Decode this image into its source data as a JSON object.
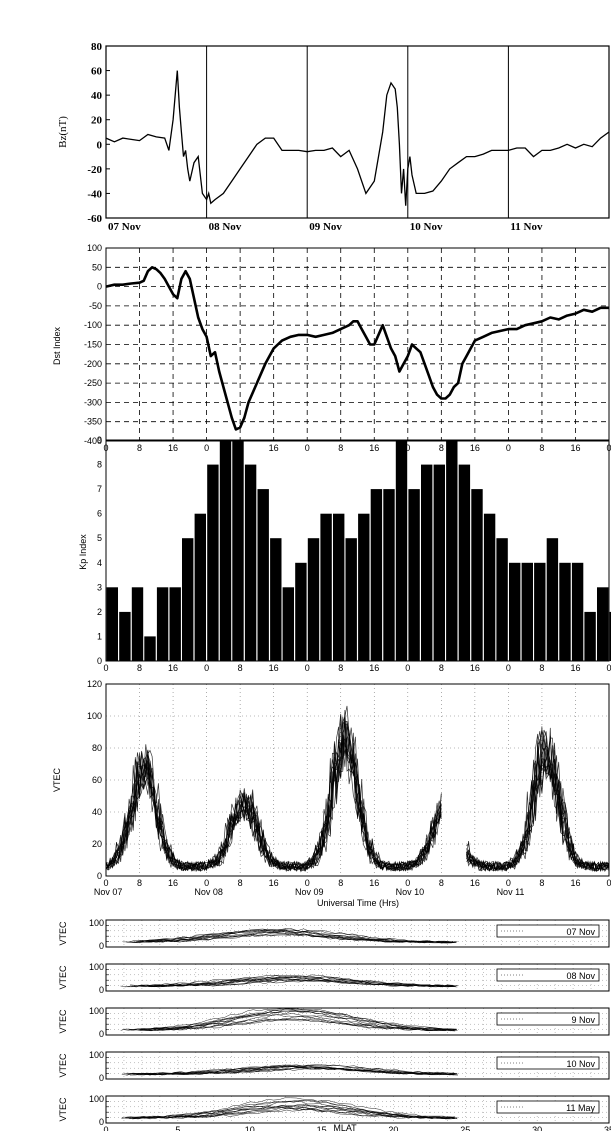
{
  "chart_data": [
    {
      "type": "line",
      "ylabel": "Bz(nT)",
      "ylim": [
        -60,
        80
      ],
      "yticks": [
        -60,
        -40,
        -20,
        0,
        20,
        40,
        60,
        80
      ],
      "xlim": [
        0,
        120
      ],
      "xtick_labels": [
        "07 Nov",
        "08 Nov",
        "09 Nov",
        "10 Nov",
        "11 Nov"
      ],
      "vlines_hours": [
        24,
        48,
        72,
        96
      ],
      "grid": false,
      "series": [
        {
          "x": [
            0,
            2,
            4,
            6,
            8,
            10,
            12,
            14,
            15,
            16,
            16.5,
            17,
            17.5,
            18,
            18.5,
            19,
            19.5,
            20,
            21,
            22,
            23,
            24,
            24.5,
            25,
            26,
            28,
            30,
            32,
            34,
            36,
            38,
            40,
            42,
            44,
            46,
            48,
            50,
            52,
            54,
            56,
            58,
            60,
            62,
            64,
            66,
            67,
            68,
            69,
            69.5,
            70,
            70.5,
            71,
            71.5,
            72,
            72.5,
            73,
            74,
            76,
            78,
            80,
            82,
            84,
            86,
            88,
            90,
            92,
            94,
            96,
            98,
            100,
            102,
            104,
            106,
            108,
            110,
            112,
            114,
            116,
            118,
            120
          ],
          "values": [
            5,
            2,
            5,
            4,
            3,
            8,
            6,
            5,
            -5,
            20,
            40,
            60,
            30,
            10,
            -10,
            -5,
            -20,
            -30,
            -15,
            -10,
            -40,
            -45,
            -40,
            -48,
            -45,
            -40,
            -30,
            -20,
            -10,
            0,
            5,
            5,
            -5,
            -5,
            -5,
            -6,
            -5,
            -5,
            -3,
            -10,
            -5,
            -20,
            -40,
            -30,
            10,
            40,
            50,
            45,
            30,
            0,
            -40,
            -20,
            -50,
            -20,
            -10,
            -25,
            -40,
            -40,
            -38,
            -30,
            -20,
            -15,
            -10,
            -10,
            -8,
            -5,
            -5,
            -5,
            -3,
            -3,
            -10,
            -5,
            -5,
            -3,
            0,
            -3,
            0,
            -2,
            5,
            10
          ]
        }
      ]
    },
    {
      "type": "line",
      "ylabel": "Dst Index",
      "ylim": [
        -400,
        100
      ],
      "yticks": [
        -400,
        -350,
        -300,
        -250,
        -200,
        -150,
        -100,
        -50,
        0,
        50,
        100
      ],
      "xlim": [
        0,
        120
      ],
      "xtick_labels": [
        "0",
        "8",
        "16",
        "0",
        "8",
        "16",
        "0",
        "8",
        "16",
        "0",
        "8",
        "16",
        "0",
        "8",
        "16",
        "0"
      ],
      "grid": true,
      "series": [
        {
          "x": [
            0,
            2,
            4,
            6,
            8,
            9,
            10,
            11,
            12,
            13,
            14,
            15,
            16,
            17,
            18,
            19,
            20,
            21,
            22,
            23,
            24,
            25,
            26,
            27,
            28,
            29,
            30,
            31,
            32,
            33,
            34,
            36,
            38,
            40,
            42,
            44,
            46,
            48,
            50,
            52,
            54,
            56,
            58,
            59,
            60,
            61,
            62,
            63,
            64,
            66,
            68,
            69,
            70,
            71,
            72,
            73,
            74,
            75,
            76,
            77,
            78,
            79,
            80,
            81,
            82,
            83,
            84,
            85,
            86,
            88,
            90,
            92,
            94,
            96,
            98,
            100,
            102,
            104,
            106,
            108,
            110,
            112,
            114,
            116,
            118,
            120
          ],
          "values": [
            0,
            5,
            5,
            8,
            10,
            15,
            40,
            50,
            45,
            35,
            20,
            0,
            -20,
            -30,
            20,
            40,
            20,
            -30,
            -80,
            -110,
            -130,
            -180,
            -170,
            -220,
            -260,
            -300,
            -340,
            -370,
            -365,
            -340,
            -300,
            -250,
            -200,
            -160,
            -140,
            -130,
            -125,
            -125,
            -130,
            -125,
            -120,
            -110,
            -100,
            -90,
            -90,
            -110,
            -130,
            -150,
            -150,
            -100,
            -160,
            -180,
            -220,
            -200,
            -180,
            -150,
            -160,
            -170,
            -200,
            -230,
            -260,
            -280,
            -290,
            -290,
            -280,
            -260,
            -250,
            -200,
            -180,
            -140,
            -130,
            -120,
            -115,
            -110,
            -110,
            -100,
            -95,
            -90,
            -80,
            -85,
            -75,
            -70,
            -60,
            -65,
            -55,
            -55
          ]
        }
      ]
    },
    {
      "type": "bar",
      "ylabel": "Kp Index",
      "ylim": [
        0,
        9
      ],
      "yticks": [
        0,
        1,
        2,
        3,
        4,
        5,
        6,
        7,
        8,
        9
      ],
      "xlim": [
        0,
        120
      ],
      "xtick_labels": [
        "0",
        "8",
        "16",
        "0",
        "8",
        "16",
        "0",
        "8",
        "16",
        "0",
        "8",
        "16",
        "0",
        "8",
        "16",
        "0"
      ],
      "values": [
        3,
        2,
        3,
        1,
        3,
        3,
        5,
        6,
        8,
        9,
        9,
        8,
        7,
        5,
        3,
        4,
        5,
        6,
        6,
        5,
        6,
        7,
        7,
        9,
        7,
        8,
        8,
        9,
        8,
        7,
        6,
        5,
        4,
        4,
        4,
        5,
        4,
        4,
        2,
        3,
        2,
        4
      ]
    },
    {
      "type": "line",
      "ylabel": "VTEC",
      "xlabel": "Universal Time (Hrs)",
      "ylim": [
        0,
        120
      ],
      "yticks": [
        0,
        20,
        40,
        60,
        80,
        100,
        120
      ],
      "xlim": [
        0,
        120
      ],
      "xtick_labels": [
        "0",
        "8",
        "16",
        "0",
        "8",
        "16",
        "0",
        "8",
        "16",
        "0",
        "8",
        "16",
        "0",
        "8",
        "16",
        "0"
      ],
      "day_labels": [
        "Nov 07",
        "Nov 08",
        "Nov 09",
        "Nov 10",
        "Nov 11"
      ],
      "grid": true,
      "gaps_hours": [
        [
          80,
          86
        ]
      ],
      "day_peaks": [
        75,
        50,
        100,
        45,
        90
      ]
    },
    {
      "type": "line",
      "ylabel": "VTEC",
      "xlabel": "MLAT",
      "ylim": [
        0,
        100
      ],
      "xlim": [
        0,
        35
      ],
      "xticks": [
        0,
        5,
        10,
        15,
        20,
        25,
        30,
        35
      ],
      "panels": [
        {
          "legend": "07 Nov",
          "peak": 55,
          "peak_mlat": 12
        },
        {
          "legend": "08 Nov",
          "peak": 40,
          "peak_mlat": 13
        },
        {
          "legend": "9 Nov",
          "peak": 80,
          "peak_mlat": 13
        },
        {
          "legend": "10 Nov",
          "peak": 40,
          "peak_mlat": 14
        },
        {
          "legend": "11 May",
          "peak": 75,
          "peak_mlat": 13
        }
      ]
    }
  ]
}
